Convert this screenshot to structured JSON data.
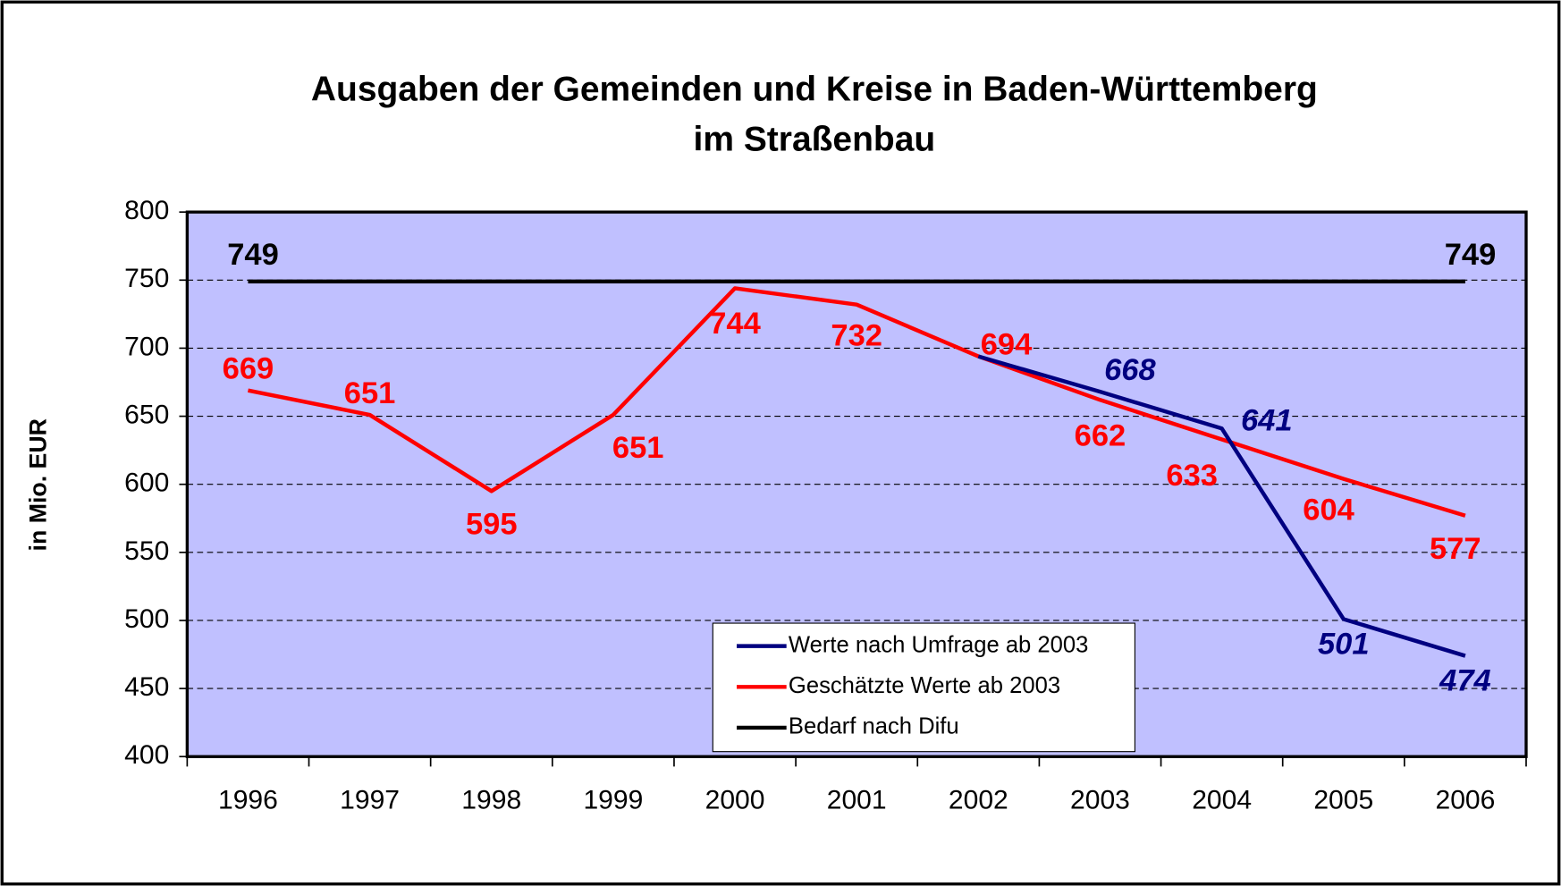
{
  "chart_data": {
    "type": "line",
    "title": [
      "Ausgaben der Gemeinden und Kreise  in Baden-Württemberg",
      "im Straßenbau"
    ],
    "y_label": "in Mio. EUR",
    "categories": [
      "1996",
      "1997",
      "1998",
      "1999",
      "2000",
      "2001",
      "2002",
      "2003",
      "2004",
      "2005",
      "2006"
    ],
    "series": [
      {
        "name": "Werte nach Umfrage ab 2003",
        "color": "#000080",
        "values": [
          null,
          null,
          null,
          null,
          null,
          null,
          694,
          668,
          641,
          501,
          474
        ],
        "value_labels": [
          null,
          null,
          null,
          null,
          null,
          null,
          null,
          "668",
          "641",
          "501",
          "474"
        ]
      },
      {
        "name": "Geschätzte Werte ab 2003",
        "color": "#ff0000",
        "values": [
          669,
          651,
          595,
          651,
          744,
          732,
          694,
          662,
          633,
          604,
          577
        ]
      },
      {
        "name": "Bedarf nach Difu",
        "color": "#000000",
        "values": [
          749,
          749,
          749,
          749,
          749,
          749,
          749,
          749,
          749,
          749,
          749
        ],
        "value_labels": [
          "749",
          null,
          null,
          null,
          null,
          null,
          null,
          null,
          null,
          null,
          "749"
        ]
      }
    ],
    "ylim": [
      400,
      800
    ],
    "yticks": [
      400,
      450,
      500,
      550,
      600,
      650,
      700,
      750,
      800
    ],
    "grid": true,
    "plot_background": "#c0c0ff"
  }
}
